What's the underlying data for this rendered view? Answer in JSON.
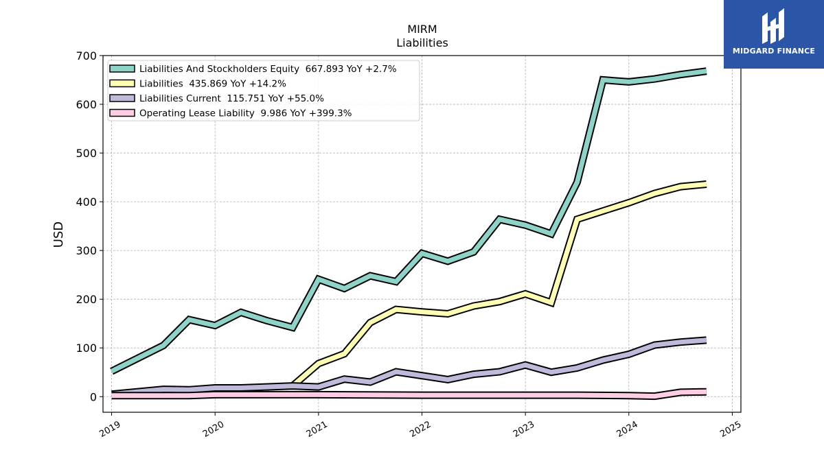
{
  "chart_data": {
    "type": "line",
    "title": "MIRM",
    "subtitle": "Liabilities",
    "xlabel": "",
    "ylabel": "USD",
    "ylim": [
      -32,
      700
    ],
    "xlim": [
      "2018-12-01",
      "2025-02-01"
    ],
    "grid": true,
    "legend_position": "top-left",
    "y_ticks": [
      0,
      100,
      200,
      300,
      400,
      500,
      600,
      700
    ],
    "x_ticks": [
      "2019",
      "2020",
      "2021",
      "2022",
      "2023",
      "2024",
      "2025"
    ],
    "series": [
      {
        "name": "Liabilities And Stockholders Equity",
        "legend_label": "Liabilities And Stockholders Equity  667.893 YoY +2.7%",
        "color": "#8dd3c7",
        "points": [
          [
            "2019-01-01",
            52
          ],
          [
            "2019-07-01",
            105
          ],
          [
            "2019-10-01",
            158
          ],
          [
            "2020-01-01",
            146
          ],
          [
            "2020-04-01",
            173
          ],
          [
            "2020-07-01",
            156
          ],
          [
            "2020-10-01",
            142
          ],
          [
            "2021-01-01",
            241
          ],
          [
            "2021-04-01",
            222
          ],
          [
            "2021-07-01",
            248
          ],
          [
            "2021-10-01",
            236
          ],
          [
            "2022-01-01",
            294
          ],
          [
            "2022-04-01",
            278
          ],
          [
            "2022-07-01",
            297
          ],
          [
            "2022-10-01",
            364
          ],
          [
            "2023-01-01",
            352
          ],
          [
            "2023-04-01",
            334
          ],
          [
            "2023-07-01",
            440
          ],
          [
            "2023-10-01",
            650
          ],
          [
            "2024-01-01",
            646
          ],
          [
            "2024-04-01",
            652
          ],
          [
            "2024-07-01",
            661
          ],
          [
            "2024-10-01",
            668
          ]
        ]
      },
      {
        "name": "Liabilities",
        "legend_label": "Liabilities  435.869 YoY +14.2%",
        "color": "#ffffb3",
        "points": [
          [
            "2020-10-01",
            22
          ],
          [
            "2021-01-01",
            68
          ],
          [
            "2021-04-01",
            88
          ],
          [
            "2021-07-01",
            152
          ],
          [
            "2021-10-01",
            179
          ],
          [
            "2022-01-01",
            174
          ],
          [
            "2022-04-01",
            170
          ],
          [
            "2022-07-01",
            186
          ],
          [
            "2022-10-01",
            195
          ],
          [
            "2023-01-01",
            211
          ],
          [
            "2023-04-01",
            193
          ],
          [
            "2023-07-01",
            364
          ],
          [
            "2023-10-01",
            381
          ],
          [
            "2024-01-01",
            398
          ],
          [
            "2024-04-01",
            417
          ],
          [
            "2024-07-01",
            431
          ],
          [
            "2024-10-01",
            436
          ]
        ]
      },
      {
        "name": "Liabilities Current",
        "legend_label": "Liabilities Current  115.751 YoY +55.0%",
        "color": "#bebada",
        "points": [
          [
            "2019-01-01",
            5
          ],
          [
            "2019-07-01",
            15
          ],
          [
            "2019-10-01",
            14
          ],
          [
            "2020-01-01",
            18
          ],
          [
            "2020-04-01",
            18
          ],
          [
            "2020-07-01",
            20
          ],
          [
            "2020-10-01",
            22
          ],
          [
            "2021-01-01",
            20
          ],
          [
            "2021-04-01",
            36
          ],
          [
            "2021-07-01",
            30
          ],
          [
            "2021-10-01",
            51
          ],
          [
            "2022-01-01",
            43
          ],
          [
            "2022-04-01",
            35
          ],
          [
            "2022-07-01",
            46
          ],
          [
            "2022-10-01",
            51
          ],
          [
            "2023-01-01",
            65
          ],
          [
            "2023-04-01",
            50
          ],
          [
            "2023-07-01",
            59
          ],
          [
            "2023-10-01",
            75
          ],
          [
            "2024-01-01",
            87
          ],
          [
            "2024-04-01",
            106
          ],
          [
            "2024-07-01",
            112
          ],
          [
            "2024-10-01",
            116
          ]
        ]
      },
      {
        "name": "Operating Lease Liability",
        "legend_label": "Operating Lease Liability  9.986 YoY +399.3%",
        "color": "#fccde5",
        "points": [
          [
            "2019-01-01",
            2
          ],
          [
            "2019-10-01",
            2
          ],
          [
            "2020-01-01",
            4
          ],
          [
            "2021-01-01",
            4
          ],
          [
            "2022-01-01",
            3
          ],
          [
            "2023-01-01",
            3
          ],
          [
            "2023-07-01",
            3
          ],
          [
            "2024-01-01",
            2
          ],
          [
            "2024-04-01",
            1
          ],
          [
            "2024-07-01",
            9
          ],
          [
            "2024-10-01",
            10
          ]
        ]
      }
    ]
  },
  "logo": {
    "text": "MIDGARD FINANCE",
    "background": "#2b55a6",
    "icon": "midgard-logo-icon"
  }
}
